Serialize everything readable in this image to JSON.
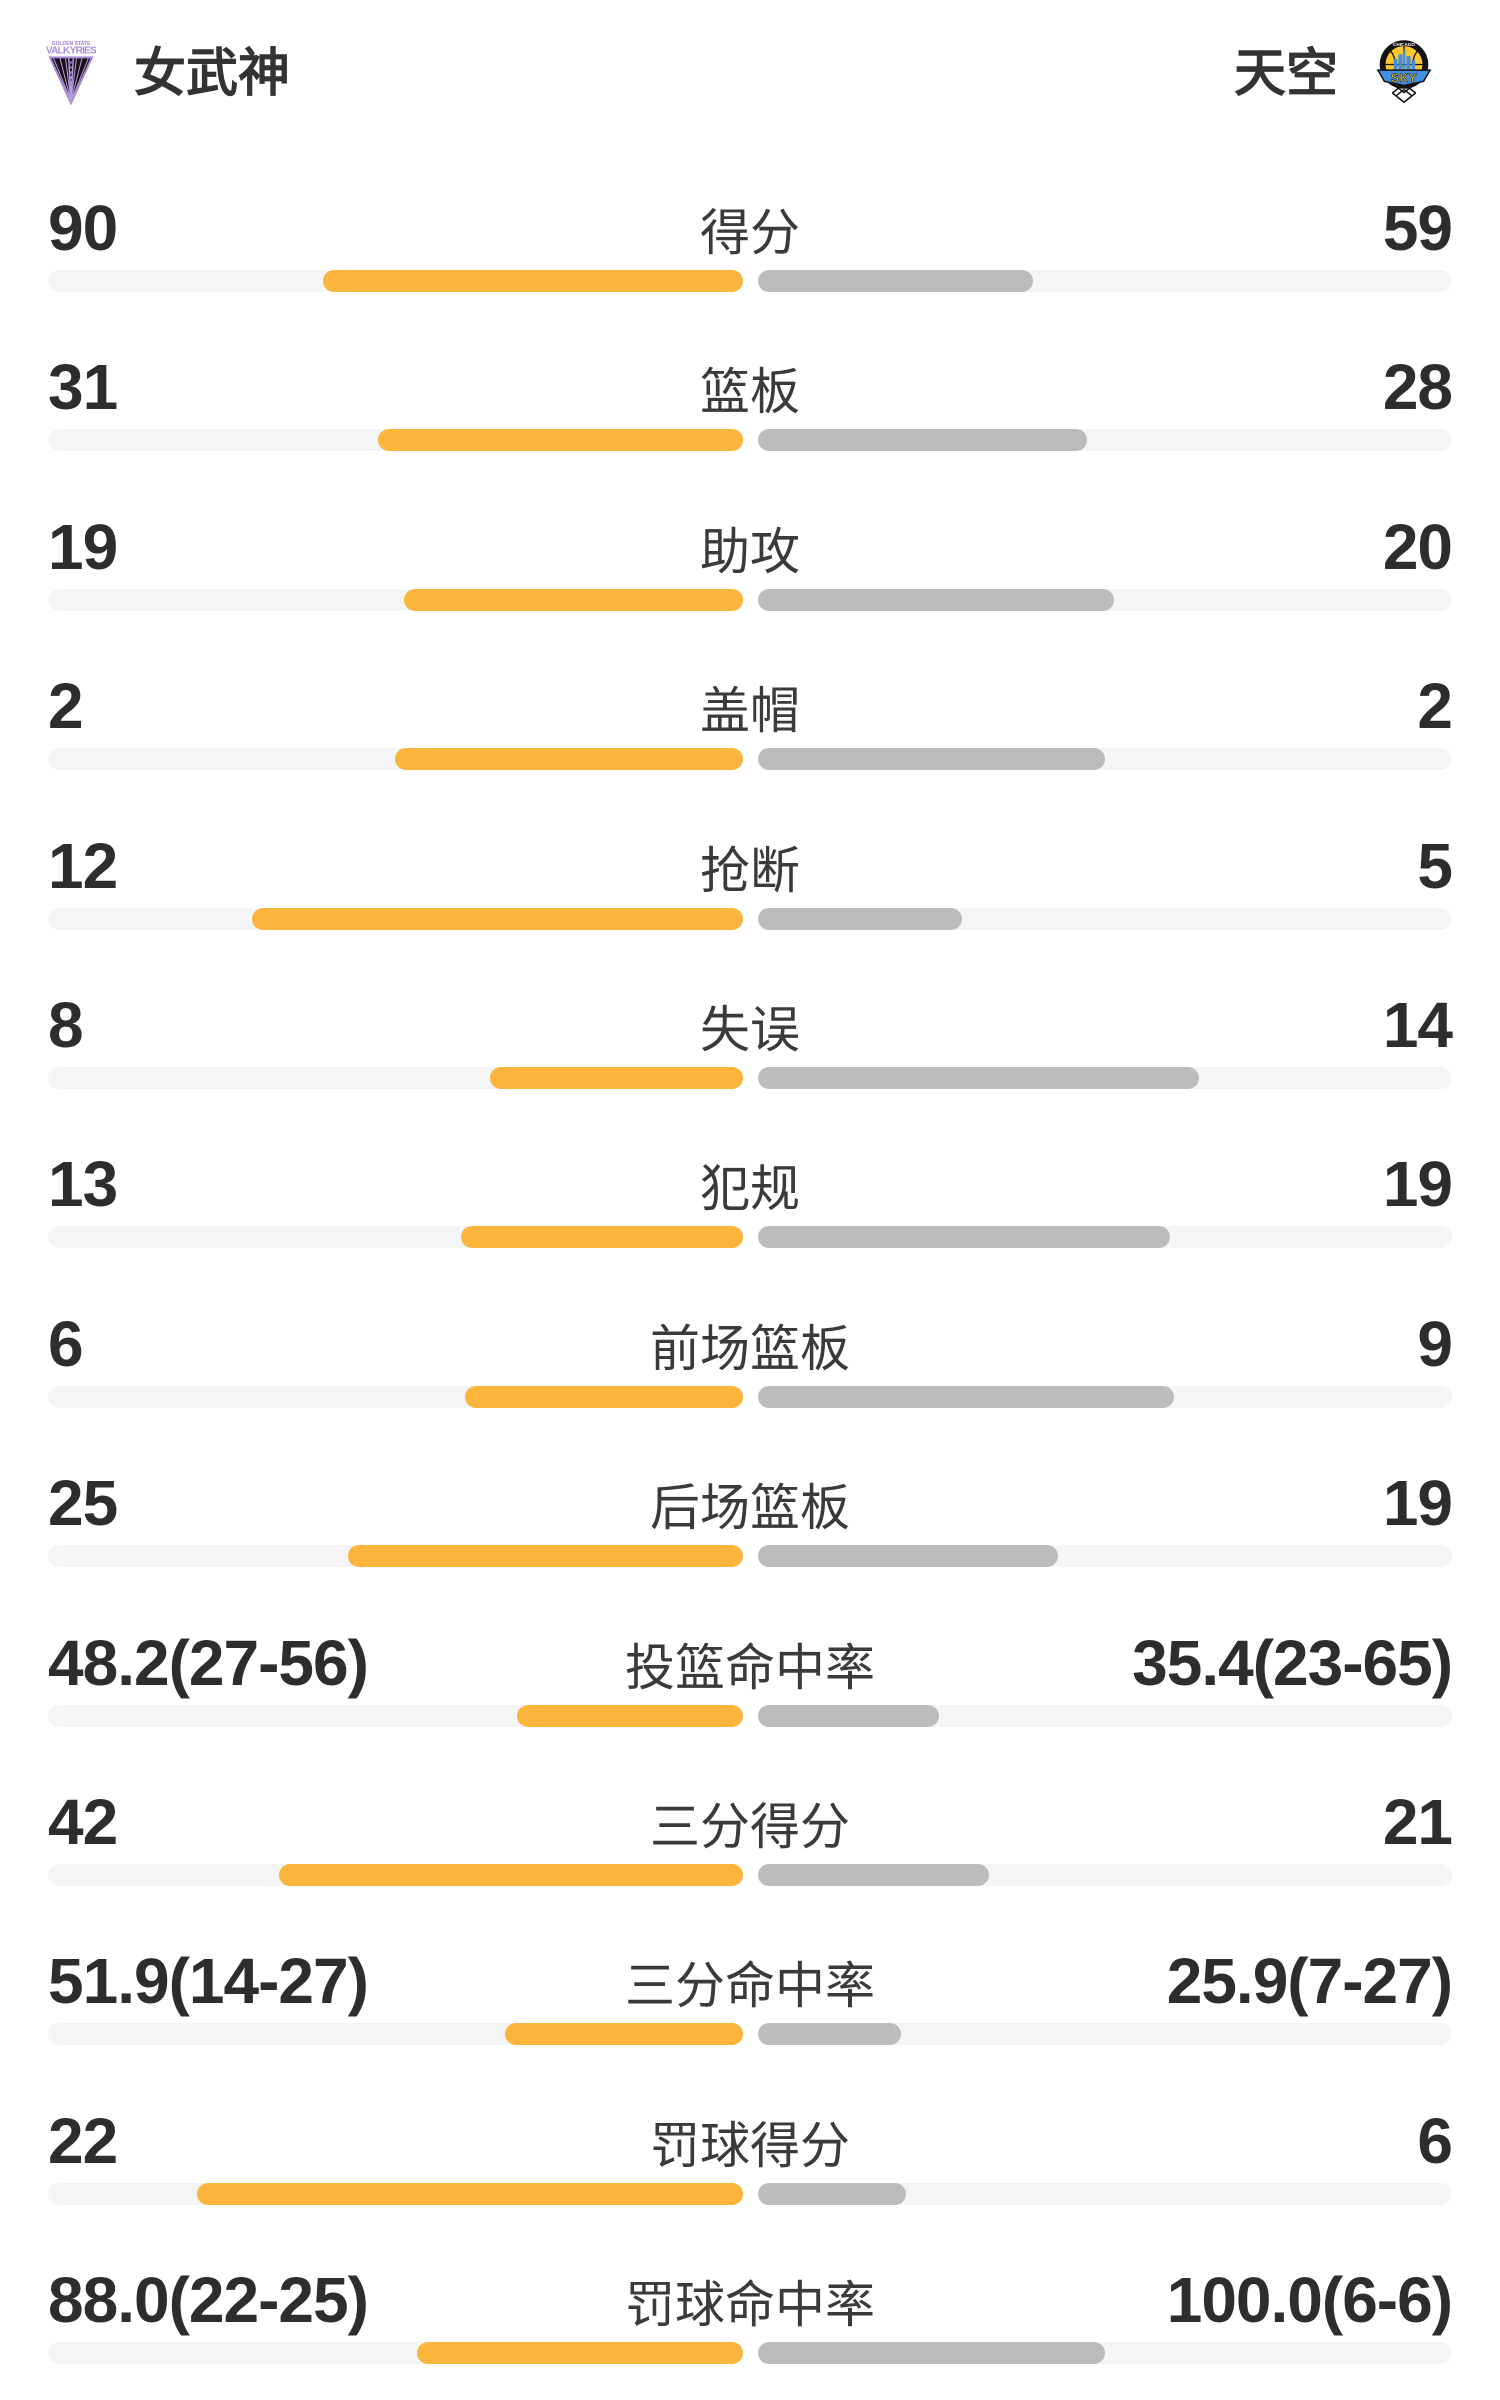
{
  "header": {
    "home": {
      "name": "女武神",
      "logo": "valkyries-logo"
    },
    "away": {
      "name": "天空",
      "logo": "sky-logo"
    }
  },
  "chart_data": {
    "type": "bar",
    "orientation": "horizontal-paired-comparison",
    "teams": [
      "女武神",
      "天空"
    ],
    "legend_position": "header",
    "colors": {
      "home_fill": "#FBB43C",
      "away_fill": "#BCBCBC",
      "track": "#F4F5F7",
      "number_text": "#2d2d2d",
      "label_text": "#3a3a3a",
      "valkyries_purple": "#A98FD6",
      "sky_blue": "#418FDE",
      "sky_yellow": "#FFC72C"
    },
    "rows": [
      {
        "label": "得分",
        "home": "90",
        "away": "59",
        "home_fill_pct": 60.4,
        "away_fill_pct": 39.6
      },
      {
        "label": "篮板",
        "home": "31",
        "away": "28",
        "home_fill_pct": 52.5,
        "away_fill_pct": 47.5
      },
      {
        "label": "助攻",
        "home": "19",
        "away": "20",
        "home_fill_pct": 48.7,
        "away_fill_pct": 51.3
      },
      {
        "label": "盖帽",
        "home": "2",
        "away": "2",
        "home_fill_pct": 50.0,
        "away_fill_pct": 50.0
      },
      {
        "label": "抢断",
        "home": "12",
        "away": "5",
        "home_fill_pct": 70.6,
        "away_fill_pct": 29.4
      },
      {
        "label": "失误",
        "home": "8",
        "away": "14",
        "home_fill_pct": 36.4,
        "away_fill_pct": 63.6
      },
      {
        "label": "犯规",
        "home": "13",
        "away": "19",
        "home_fill_pct": 40.6,
        "away_fill_pct": 59.4
      },
      {
        "label": "前场篮板",
        "home": "6",
        "away": "9",
        "home_fill_pct": 40.0,
        "away_fill_pct": 60.0
      },
      {
        "label": "后场篮板",
        "home": "25",
        "away": "19",
        "home_fill_pct": 56.8,
        "away_fill_pct": 43.2
      },
      {
        "label": "投篮命中率",
        "home": "48.2(27-56)",
        "away": "35.4(23-65)",
        "home_fill_pct": 32.5,
        "away_fill_pct": 26.1
      },
      {
        "label": "三分得分",
        "home": "42",
        "away": "21",
        "home_fill_pct": 66.7,
        "away_fill_pct": 33.3
      },
      {
        "label": "三分命中率",
        "home": "51.9(14-27)",
        "away": "25.9(7-27)",
        "home_fill_pct": 34.2,
        "away_fill_pct": 20.6
      },
      {
        "label": "罚球得分",
        "home": "22",
        "away": "6",
        "home_fill_pct": 78.6,
        "away_fill_pct": 21.4
      },
      {
        "label": "罚球命中率",
        "home": "88.0(22-25)",
        "away": "100.0(6-6)",
        "home_fill_pct": 46.8,
        "away_fill_pct": 50.0
      }
    ]
  }
}
